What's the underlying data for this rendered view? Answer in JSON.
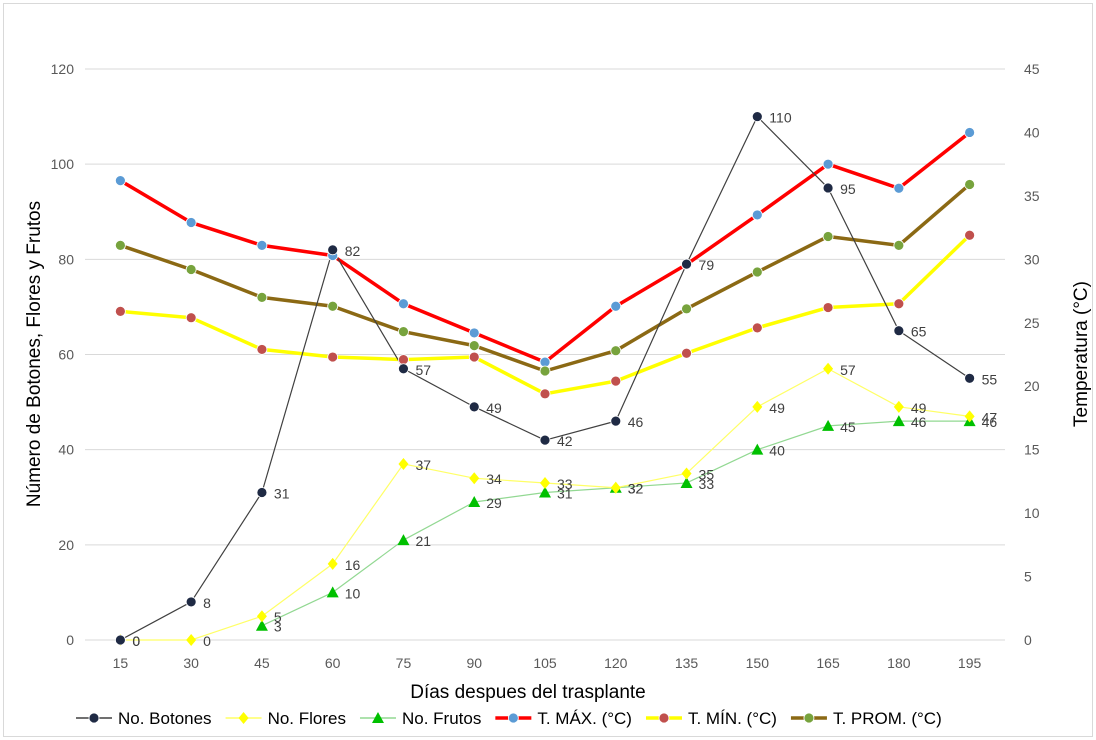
{
  "chart_data": {
    "type": "line",
    "x": [
      15,
      30,
      45,
      60,
      75,
      90,
      105,
      120,
      135,
      150,
      165,
      180,
      195
    ],
    "xlabel": "Días despues del trasplante",
    "ylabel": "Número de Botones, Flores y Frutos",
    "y2label": "Temperatura (°C)",
    "ylim": [
      0,
      120
    ],
    "y2lim": [
      0,
      45
    ],
    "yticks": [
      "0",
      "20",
      "40",
      "60",
      "80",
      "100",
      "120"
    ],
    "y2ticks": [
      "0",
      "5",
      "10",
      "15",
      "20",
      "25",
      "30",
      "35",
      "40",
      "45"
    ],
    "grid": true,
    "legend_position": "bottom",
    "series": [
      {
        "name": "No. Botones",
        "axis": "left",
        "marker": "circle",
        "line_color": "#404040",
        "marker_color": "#1f2a44",
        "values": [
          0,
          8,
          31,
          82,
          57,
          49,
          42,
          46,
          79,
          110,
          95,
          65,
          55
        ],
        "labels": [
          "0",
          "8",
          "31",
          "82",
          "57",
          "49",
          "42",
          "46",
          "79",
          "110",
          "95",
          "65",
          "55"
        ]
      },
      {
        "name": "No. Flores",
        "axis": "left",
        "marker": "diamond",
        "line_color": "#ffff66",
        "marker_color": "#ffff00",
        "values": [
          0,
          0,
          5,
          16,
          37,
          34,
          33,
          32,
          35,
          49,
          57,
          49,
          47
        ],
        "labels": [
          "0",
          "0",
          "5",
          "16",
          "37",
          "34",
          "33",
          "32",
          "35",
          "49",
          "57",
          "49",
          "47"
        ]
      },
      {
        "name": "No. Frutos",
        "axis": "left",
        "marker": "triangle",
        "line_color": "#92d892",
        "marker_color": "#00c000",
        "values": [
          null,
          null,
          3,
          10,
          21,
          29,
          31,
          32,
          33,
          40,
          45,
          46,
          46
        ],
        "labels": [
          "",
          "",
          "3",
          "10",
          "21",
          "29",
          "31",
          "32",
          "33",
          "40",
          "45",
          "46",
          "46"
        ]
      },
      {
        "name": "T. MÁX. (°C)",
        "axis": "right",
        "marker": "circle",
        "line_color": "#ff0000",
        "marker_color": "#5b9bd5",
        "values": [
          36.2,
          32.9,
          31.1,
          30.3,
          26.5,
          24.2,
          21.9,
          26.3,
          29.6,
          33.5,
          37.5,
          35.6,
          40.0
        ]
      },
      {
        "name": "T. MÍN. (°C)",
        "axis": "right",
        "marker": "circle",
        "line_color": "#ffff00",
        "marker_color": "#c0504d",
        "values": [
          25.9,
          25.4,
          22.9,
          22.3,
          22.1,
          22.3,
          19.4,
          20.4,
          22.6,
          24.6,
          26.2,
          26.5,
          31.9
        ]
      },
      {
        "name": "T. PROM. (°C)",
        "axis": "right",
        "marker": "circle",
        "line_color": "#8b6914",
        "marker_color": "#77a33d",
        "values": [
          31.1,
          29.2,
          27.0,
          26.3,
          24.3,
          23.2,
          21.2,
          22.8,
          26.1,
          29.0,
          31.8,
          31.1,
          35.9
        ]
      }
    ]
  }
}
